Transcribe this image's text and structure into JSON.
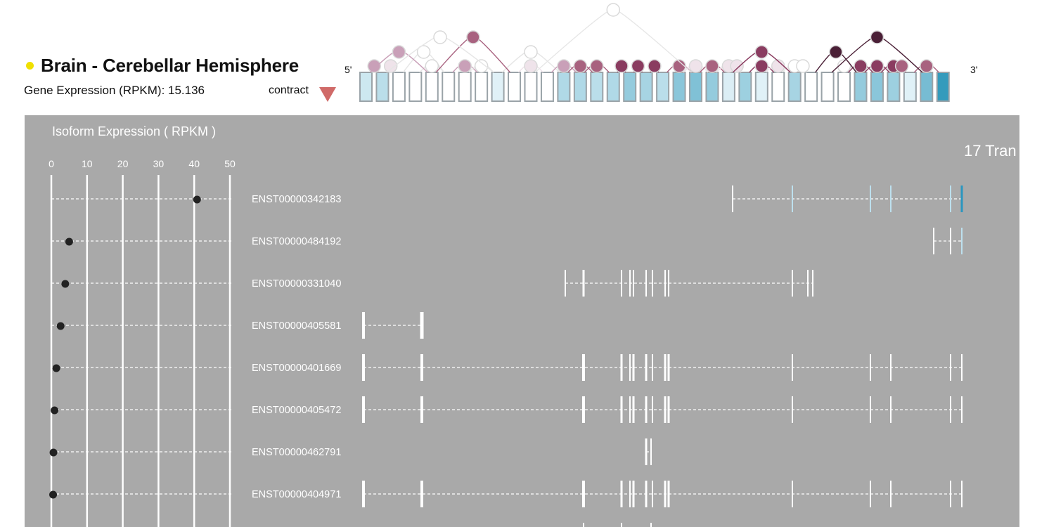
{
  "header": {
    "tissue_name": "Brain - Cerebellar Hemisphere",
    "tissue_color": "#f0e000",
    "gene_expression": "Gene Expression (RPKM): 15.136",
    "contract_label": "contract",
    "contract_icon": "triangle-down-icon",
    "five_prime": "5'",
    "three_prime": "3'"
  },
  "panel": {
    "title": "Isoform Expression ( RPKM )",
    "transcript_count": "17 Tran"
  },
  "colors": {
    "panel_bg": "#a9a9a9",
    "isoform_dot": "#222222",
    "exon_white": "#ffffff",
    "contract_arrow": "#d06a68"
  },
  "chart_data": [
    {
      "type": "scatter",
      "title": "Isoform Expression ( RPKM )",
      "xlabel": "",
      "ylabel": "",
      "xlim": [
        0,
        50
      ],
      "x_ticks": [
        0,
        10,
        20,
        30,
        40,
        50
      ],
      "grid": true,
      "categories": [
        "ENST00000342183",
        "ENST00000484192",
        "ENST00000331040",
        "ENST00000405581",
        "ENST00000401669",
        "ENST00000405472",
        "ENST00000462791",
        "ENST00000404971"
      ],
      "values": [
        40.8,
        5.0,
        3.9,
        2.6,
        1.4,
        0.9,
        0.6,
        0.5
      ]
    },
    {
      "type": "heatmap",
      "title": "",
      "exon_count": 36,
      "exon_expression_level": [
        0.15,
        0.25,
        0,
        0,
        0,
        0,
        0,
        0,
        0.05,
        0,
        0,
        0,
        0.3,
        0.3,
        0.25,
        0.3,
        0.45,
        0.35,
        0.25,
        0.5,
        0.55,
        0.45,
        0.08,
        0.4,
        0.05,
        0,
        0.35,
        0,
        0,
        0,
        0.45,
        0.5,
        0.4,
        0.05,
        0.6,
        0.95
      ],
      "junction_heights": [
        2,
        2,
        1,
        1,
        1,
        1,
        2,
        1,
        2,
        1,
        2,
        2,
        2,
        2,
        2,
        2,
        2,
        1,
        1,
        1,
        2,
        2,
        2,
        1,
        2,
        2,
        1,
        1,
        1,
        1,
        1,
        1,
        2,
        2,
        1,
        2
      ]
    }
  ]
}
